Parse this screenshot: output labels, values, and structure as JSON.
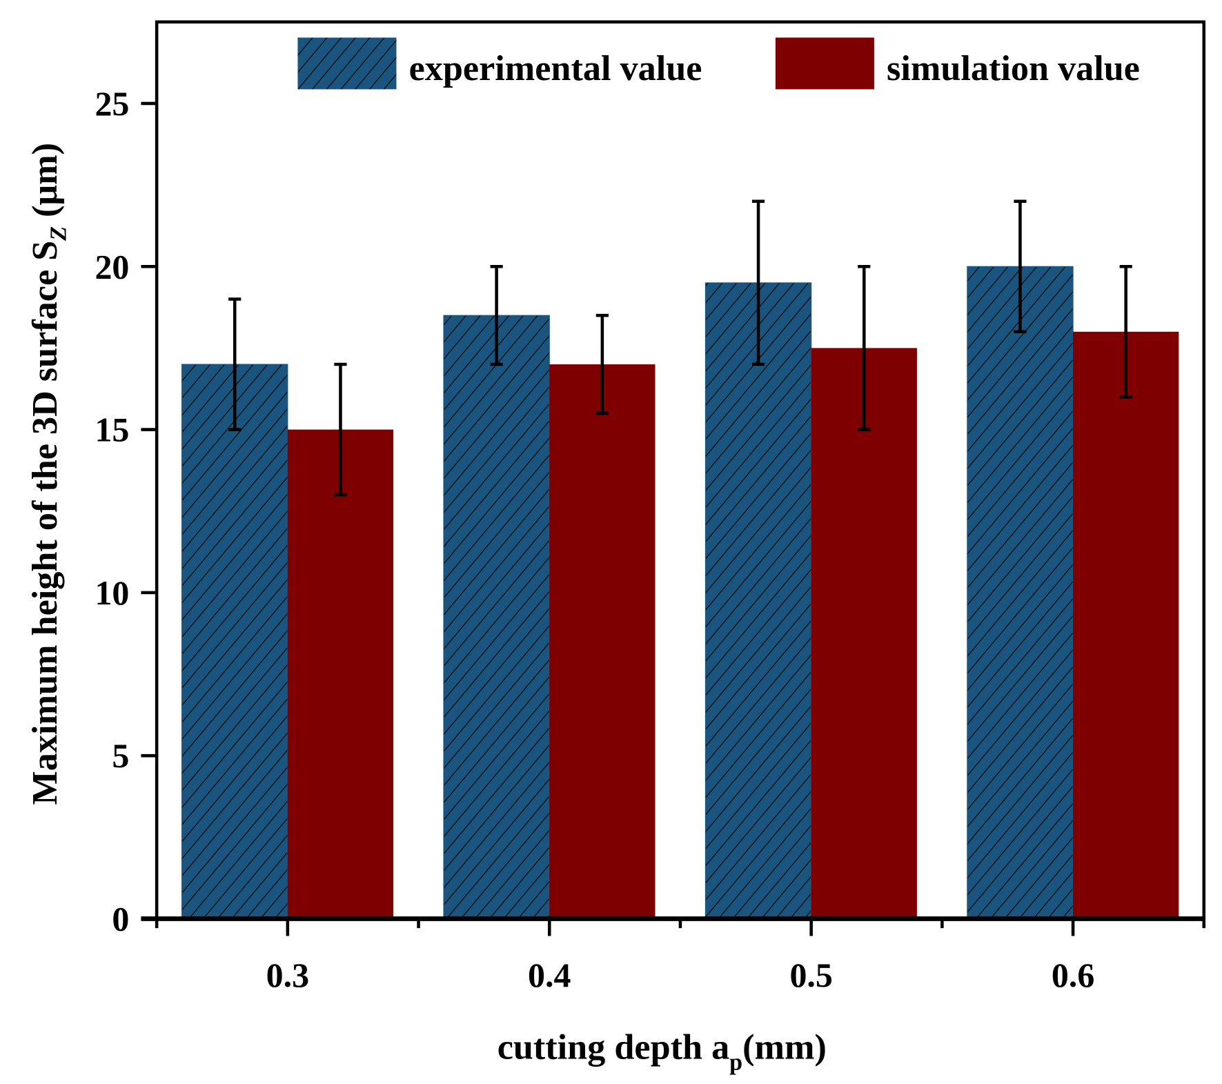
{
  "chart_data": {
    "type": "bar",
    "categories": [
      "0.3",
      "0.4",
      "0.5",
      "0.6"
    ],
    "series": [
      {
        "name": "experimental value",
        "values": [
          17,
          18.5,
          19.5,
          20
        ],
        "errors": [
          2,
          1.5,
          2.5,
          2
        ],
        "color": "#1a5580",
        "hatch": true
      },
      {
        "name": "simulation value",
        "values": [
          15,
          17,
          17.5,
          18
        ],
        "errors": [
          2,
          1.5,
          2.5,
          2
        ],
        "color": "#7f0000",
        "hatch": false
      }
    ],
    "xlabel": "cutting depth a",
    "xlabel_sub": "p",
    "xlabel_unit": "(mm)",
    "ylabel": "Maximum height of the 3D surface S",
    "ylabel_sub": "Z",
    "ylabel_unit": " (μm)",
    "ylim": [
      0,
      27.5
    ],
    "yticks": [
      0,
      5,
      10,
      15,
      20,
      25
    ],
    "legend_position": "top-right",
    "grid": false
  }
}
